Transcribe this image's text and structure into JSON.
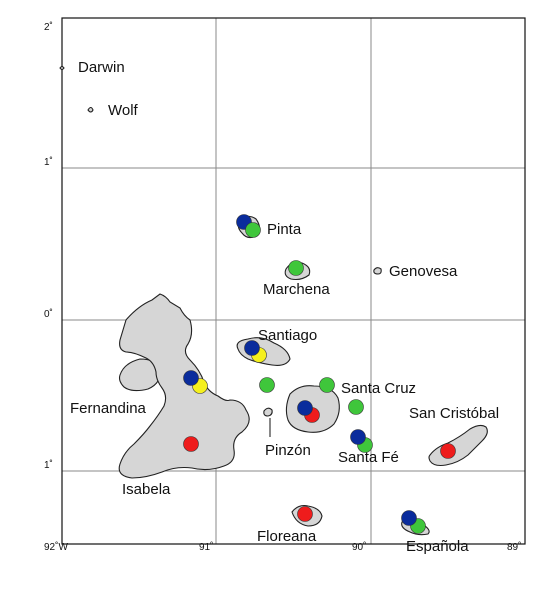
{
  "map": {
    "latitude_labels": [
      "2˚",
      "1˚",
      "0˚",
      "1˚"
    ],
    "longitude_labels": [
      "92˚W",
      "91˚",
      "90˚",
      "89˚"
    ],
    "island_labels": {
      "darwin": "Darwin",
      "wolf": "Wolf",
      "pinta": "Pinta",
      "marchena": "Marchena",
      "genovesa": "Genovesa",
      "santiago": "Santiago",
      "fernandina": "Fernandina",
      "santa_cruz": "Santa Cruz",
      "san_cristobal": "San Cristóbal",
      "pinzon": "Pinzón",
      "santa_fe": "Santa Fé",
      "isabela": "Isabela",
      "floreana": "Floreana",
      "espanola": "Española"
    },
    "marker_colors": {
      "blue": "#0a2c9c",
      "green": "#3fc63b",
      "red": "#ee1c1c",
      "yellow": "#f5f01e"
    },
    "markers": [
      {
        "island": "pinta",
        "color": "blue"
      },
      {
        "island": "pinta",
        "color": "green"
      },
      {
        "island": "marchena",
        "color": "green"
      },
      {
        "island": "santiago",
        "color": "blue"
      },
      {
        "island": "santiago",
        "color": "yellow"
      },
      {
        "island": "isabela",
        "color": "blue"
      },
      {
        "island": "isabela",
        "color": "yellow"
      },
      {
        "island": "isabela",
        "color": "red"
      },
      {
        "island": "santiago",
        "color": "green"
      },
      {
        "island": "santa_cruz",
        "color": "green"
      },
      {
        "island": "santa_cruz",
        "color": "green"
      },
      {
        "island": "santa_cruz",
        "color": "blue"
      },
      {
        "island": "santa_cruz",
        "color": "red"
      },
      {
        "island": "santa_fe",
        "color": "blue"
      },
      {
        "island": "santa_fe",
        "color": "green"
      },
      {
        "island": "san_cristobal",
        "color": "red"
      },
      {
        "island": "floreana",
        "color": "red"
      },
      {
        "island": "espanola",
        "color": "blue"
      },
      {
        "island": "espanola",
        "color": "green"
      }
    ]
  }
}
